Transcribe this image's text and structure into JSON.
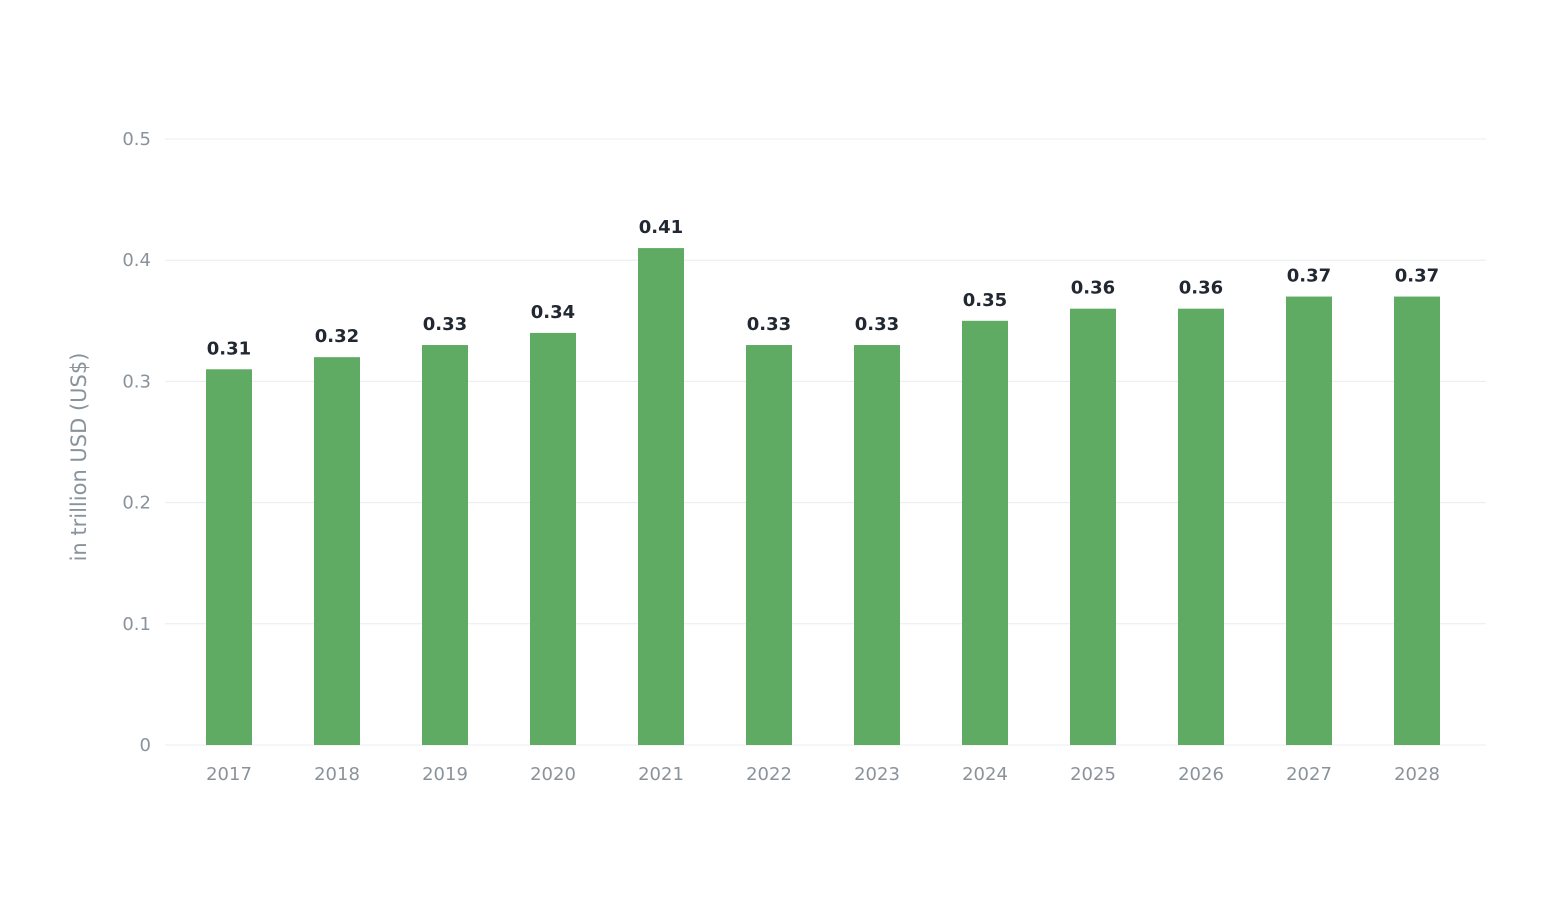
{
  "chart_data": {
    "type": "bar",
    "categories": [
      "2017",
      "2018",
      "2019",
      "2020",
      "2021",
      "2022",
      "2023",
      "2024",
      "2025",
      "2026",
      "2027",
      "2028"
    ],
    "values": [
      0.31,
      0.32,
      0.33,
      0.34,
      0.41,
      0.33,
      0.33,
      0.35,
      0.36,
      0.36,
      0.37,
      0.37
    ],
    "value_labels": [
      "0.31",
      "0.32",
      "0.33",
      "0.34",
      "0.41",
      "0.33",
      "0.33",
      "0.35",
      "0.36",
      "0.36",
      "0.37",
      "0.37"
    ],
    "ylabel": "in trillion USD (US$)",
    "ylim": [
      0,
      0.5
    ],
    "yticks": [
      {
        "value": 0,
        "label": "0"
      },
      {
        "value": 0.1,
        "label": "0.1"
      },
      {
        "value": 0.2,
        "label": "0.2"
      },
      {
        "value": 0.3,
        "label": "0.3"
      },
      {
        "value": 0.4,
        "label": "0.4"
      },
      {
        "value": 0.5,
        "label": "0.5"
      }
    ],
    "grid": true,
    "bar_color": "#5fab64"
  }
}
